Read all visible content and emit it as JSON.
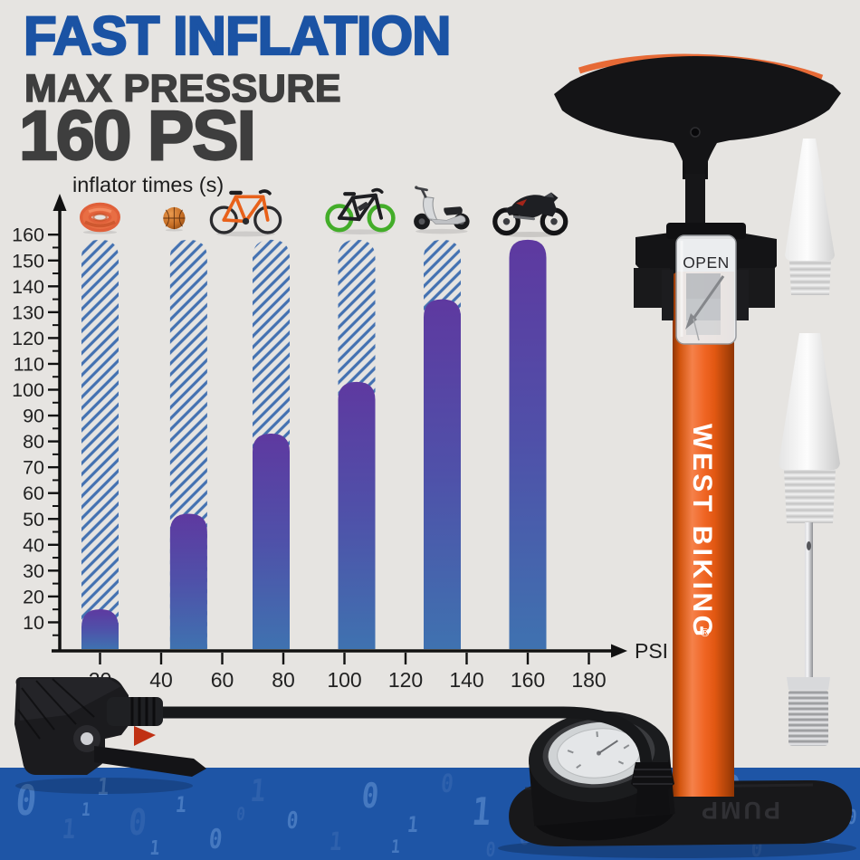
{
  "header": {
    "title": "FAST INFLATION",
    "subtitle": "MAX PRESSURE",
    "max_pressure": "160 PSI"
  },
  "chart_data": {
    "type": "bar",
    "ylabel": "inflator times (s)",
    "xlabel": "PSI",
    "x_ticks": [
      20,
      40,
      60,
      80,
      100,
      120,
      140,
      160,
      180
    ],
    "y_ticks": [
      10,
      20,
      30,
      40,
      50,
      60,
      70,
      80,
      90,
      100,
      110,
      120,
      130,
      140,
      150,
      160
    ],
    "xlim": [
      0,
      195
    ],
    "ylim": [
      0,
      170
    ],
    "grid": false,
    "max_bar_value": 158,
    "bars": [
      {
        "item": "tire tube",
        "icon": "tire-tube-icon",
        "psi": 20,
        "time_s": 15
      },
      {
        "item": "basketball",
        "icon": "basketball-icon",
        "psi": 49,
        "time_s": 52
      },
      {
        "item": "mountain bike",
        "icon": "mountain-bike-icon",
        "psi": 76,
        "time_s": 83
      },
      {
        "item": "electric bike",
        "icon": "electric-bike-icon",
        "psi": 104,
        "time_s": 103
      },
      {
        "item": "scooter",
        "icon": "scooter-icon",
        "psi": 132,
        "time_s": 135
      },
      {
        "item": "motorcycle",
        "icon": "motorcycle-icon",
        "psi": 160,
        "time_s": 158
      }
    ]
  },
  "pump": {
    "brand": "WEST BIKING",
    "registered_mark": "®",
    "valve_window_label": "OPEN",
    "base_embossed_label": "PUMP"
  },
  "colors": {
    "accent_blue": "#1b53a4",
    "dark_text": "#3e3e3e",
    "hatch_blue": "#4371b1",
    "bar_purple_top": "#5e39a0",
    "bar_blue_bottom": "#3f72b0",
    "pump_orange": "#ee6318",
    "band_blue": "#1e55a6"
  },
  "footer_band": {
    "digits": [
      [
        "0",
        3,
        35,
        46,
        "l"
      ],
      [
        "1",
        8,
        68,
        30,
        "d"
      ],
      [
        "1",
        12,
        22,
        26,
        "l"
      ],
      [
        "0",
        16,
        60,
        40,
        "d"
      ],
      [
        "1",
        21,
        40,
        24,
        "l"
      ],
      [
        "0",
        25,
        78,
        30,
        "l"
      ],
      [
        "1",
        30,
        25,
        34,
        "d"
      ],
      [
        "0",
        34,
        58,
        26,
        "l"
      ],
      [
        "1",
        39,
        80,
        28,
        "d"
      ],
      [
        "0",
        43,
        30,
        38,
        "l"
      ],
      [
        "1",
        48,
        62,
        24,
        "l"
      ],
      [
        "0",
        52,
        18,
        28,
        "d"
      ],
      [
        "1",
        56,
        48,
        42,
        "l"
      ],
      [
        "0",
        61,
        75,
        26,
        "d"
      ],
      [
        "1",
        65,
        30,
        30,
        "l"
      ],
      [
        "0",
        69,
        58,
        36,
        "l"
      ],
      [
        "1",
        73,
        20,
        24,
        "d"
      ],
      [
        "0",
        77,
        70,
        30,
        "l"
      ],
      [
        "1",
        81,
        42,
        26,
        "d"
      ],
      [
        "0",
        85,
        24,
        40,
        "l"
      ],
      [
        "1",
        89,
        62,
        28,
        "l"
      ],
      [
        "0",
        93,
        38,
        32,
        "d"
      ],
      [
        "1",
        96,
        72,
        24,
        "l"
      ],
      [
        "0",
        57,
        90,
        22,
        "d"
      ],
      [
        "1",
        18,
        88,
        22,
        "l"
      ],
      [
        "0",
        88,
        88,
        26,
        "d"
      ],
      [
        "1",
        10,
        45,
        20,
        "l"
      ],
      [
        "0",
        28,
        50,
        20,
        "d"
      ],
      [
        "1",
        46,
        85,
        20,
        "l"
      ],
      [
        "0",
        63,
        12,
        22,
        "l"
      ],
      [
        "1",
        79,
        12,
        20,
        "d"
      ],
      [
        "0",
        99,
        55,
        22,
        "l"
      ]
    ]
  }
}
